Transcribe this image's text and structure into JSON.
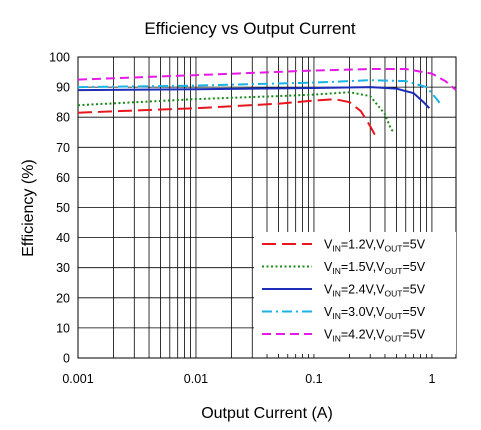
{
  "chart_data": {
    "type": "line",
    "title": "Efficiency vs Output Current",
    "xlabel": "Output Current (A)",
    "ylabel": "Efficiency (%)",
    "xscale": "log",
    "xlim": [
      0.001,
      1.6
    ],
    "ylim": [
      0,
      100
    ],
    "x_ticks": [
      "0.001",
      "0.01",
      "0.1",
      "1"
    ],
    "y_ticks": [
      "0",
      "10",
      "20",
      "30",
      "40",
      "50",
      "60",
      "70",
      "80",
      "90",
      "100"
    ],
    "grid": true,
    "legend_position": "bottom-right",
    "series": [
      {
        "name_parts": [
          "V",
          "IN",
          "=1.2V,V",
          "OUT",
          "=5V"
        ],
        "color": "#e8161c",
        "dash": "long-dash",
        "points": [
          [
            0.001,
            81.5
          ],
          [
            0.01,
            83
          ],
          [
            0.05,
            84.5
          ],
          [
            0.1,
            85.5
          ],
          [
            0.15,
            86
          ],
          [
            0.2,
            85
          ],
          [
            0.25,
            82
          ],
          [
            0.3,
            77
          ],
          [
            0.33,
            74
          ]
        ]
      },
      {
        "name_parts": [
          "V",
          "IN",
          "=1.5V,V",
          "OUT",
          "=5V"
        ],
        "color": "#1a8a1a",
        "dash": "dotted",
        "points": [
          [
            0.001,
            84
          ],
          [
            0.01,
            86
          ],
          [
            0.05,
            87
          ],
          [
            0.1,
            87.5
          ],
          [
            0.2,
            88.3
          ],
          [
            0.3,
            87
          ],
          [
            0.4,
            81
          ],
          [
            0.45,
            76
          ],
          [
            0.48,
            75
          ]
        ]
      },
      {
        "name_parts": [
          "V",
          "IN",
          "=2.4V,V",
          "OUT",
          "=5V"
        ],
        "color": "#1c2db8",
        "dash": "solid",
        "points": [
          [
            0.001,
            89
          ],
          [
            0.01,
            89.3
          ],
          [
            0.1,
            89.7
          ],
          [
            0.3,
            90
          ],
          [
            0.5,
            89.5
          ],
          [
            0.7,
            88
          ],
          [
            0.85,
            85
          ],
          [
            0.95,
            83
          ]
        ]
      },
      {
        "name_parts": [
          "V",
          "IN",
          "=3.0V,V",
          "OUT",
          "=5V"
        ],
        "color": "#1ab3e6",
        "dash": "dash-dot",
        "points": [
          [
            0.001,
            90
          ],
          [
            0.01,
            90.5
          ],
          [
            0.1,
            91.5
          ],
          [
            0.3,
            92.3
          ],
          [
            0.6,
            92
          ],
          [
            0.9,
            90
          ],
          [
            1.1,
            86
          ],
          [
            1.2,
            84
          ]
        ]
      },
      {
        "name_parts": [
          "V",
          "IN",
          "=4.2V,V",
          "OUT",
          "=5V"
        ],
        "color": "#e61ae6",
        "dash": "dashed",
        "points": [
          [
            0.001,
            92.5
          ],
          [
            0.01,
            94
          ],
          [
            0.1,
            95.5
          ],
          [
            0.3,
            96
          ],
          [
            0.6,
            96
          ],
          [
            1.0,
            94.5
          ],
          [
            1.3,
            92
          ],
          [
            1.6,
            89
          ]
        ]
      }
    ]
  }
}
